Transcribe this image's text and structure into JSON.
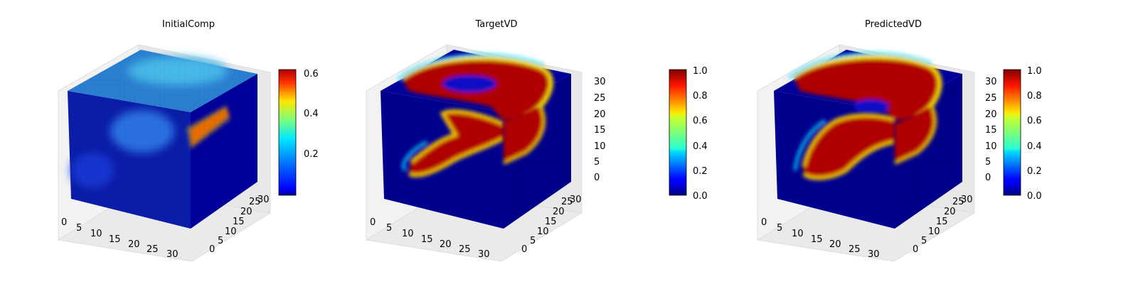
{
  "chart_data": [
    {
      "type": "voxel-3d",
      "title": "InitialComp",
      "colormap": "jet",
      "grid": true,
      "x_ticks": [
        "0",
        "5",
        "10",
        "15",
        "20",
        "25",
        "30"
      ],
      "y_ticks": [
        "0",
        "5",
        "10",
        "15",
        "20",
        "25",
        "30"
      ],
      "z_ticks": [],
      "xlim": [
        0,
        32
      ],
      "ylim": [
        0,
        32
      ],
      "zlim": [
        0,
        32
      ],
      "colorbar": {
        "ticks": [
          "0.2",
          "0.4",
          "0.6"
        ],
        "range": [
          0.02,
          0.62
        ],
        "tick_values": [
          0.2,
          0.4,
          0.6
        ]
      },
      "surface_estimate": "mostly dark blue; top face light blue ~0.25; red streak on front edge right side ~0.6"
    },
    {
      "type": "voxel-3d",
      "title": "TargetVD",
      "colormap": "jet",
      "grid": true,
      "x_ticks": [
        "0",
        "5",
        "10",
        "15",
        "20",
        "25",
        "30"
      ],
      "y_ticks": [
        "0",
        "5",
        "10",
        "15",
        "20",
        "25",
        "30"
      ],
      "z_ticks": [
        "0",
        "5",
        "10",
        "15",
        "20",
        "25",
        "30"
      ],
      "xlim": [
        0,
        32
      ],
      "ylim": [
        0,
        32
      ],
      "zlim": [
        0,
        32
      ],
      "colorbar": {
        "ticks": [
          "0.0",
          "0.2",
          "0.4",
          "0.6",
          "0.8",
          "1.0"
        ],
        "range": [
          0.0,
          1.0
        ],
        "tick_values": [
          0,
          0.2,
          0.4,
          0.6,
          0.8,
          1.0
        ]
      },
      "surface_estimate": "binary blue/red regions with smooth transitions"
    },
    {
      "type": "voxel-3d",
      "title": "PredictedVD",
      "colormap": "jet",
      "grid": true,
      "x_ticks": [
        "0",
        "5",
        "10",
        "15",
        "20",
        "25",
        "30"
      ],
      "y_ticks": [
        "0",
        "5",
        "10",
        "15",
        "20",
        "25",
        "30"
      ],
      "z_ticks": [
        "0",
        "5",
        "10",
        "15",
        "20",
        "25",
        "30"
      ],
      "xlim": [
        0,
        32
      ],
      "ylim": [
        0,
        32
      ],
      "zlim": [
        0,
        32
      ],
      "colorbar": {
        "ticks": [
          "0.0",
          "0.2",
          "0.4",
          "0.6",
          "0.8",
          "1.0"
        ],
        "range": [
          0.0,
          1.0
        ],
        "tick_values": [
          0,
          0.2,
          0.4,
          0.6,
          0.8,
          1.0
        ]
      },
      "surface_estimate": "binary blue/red regions with smooth transitions"
    }
  ]
}
